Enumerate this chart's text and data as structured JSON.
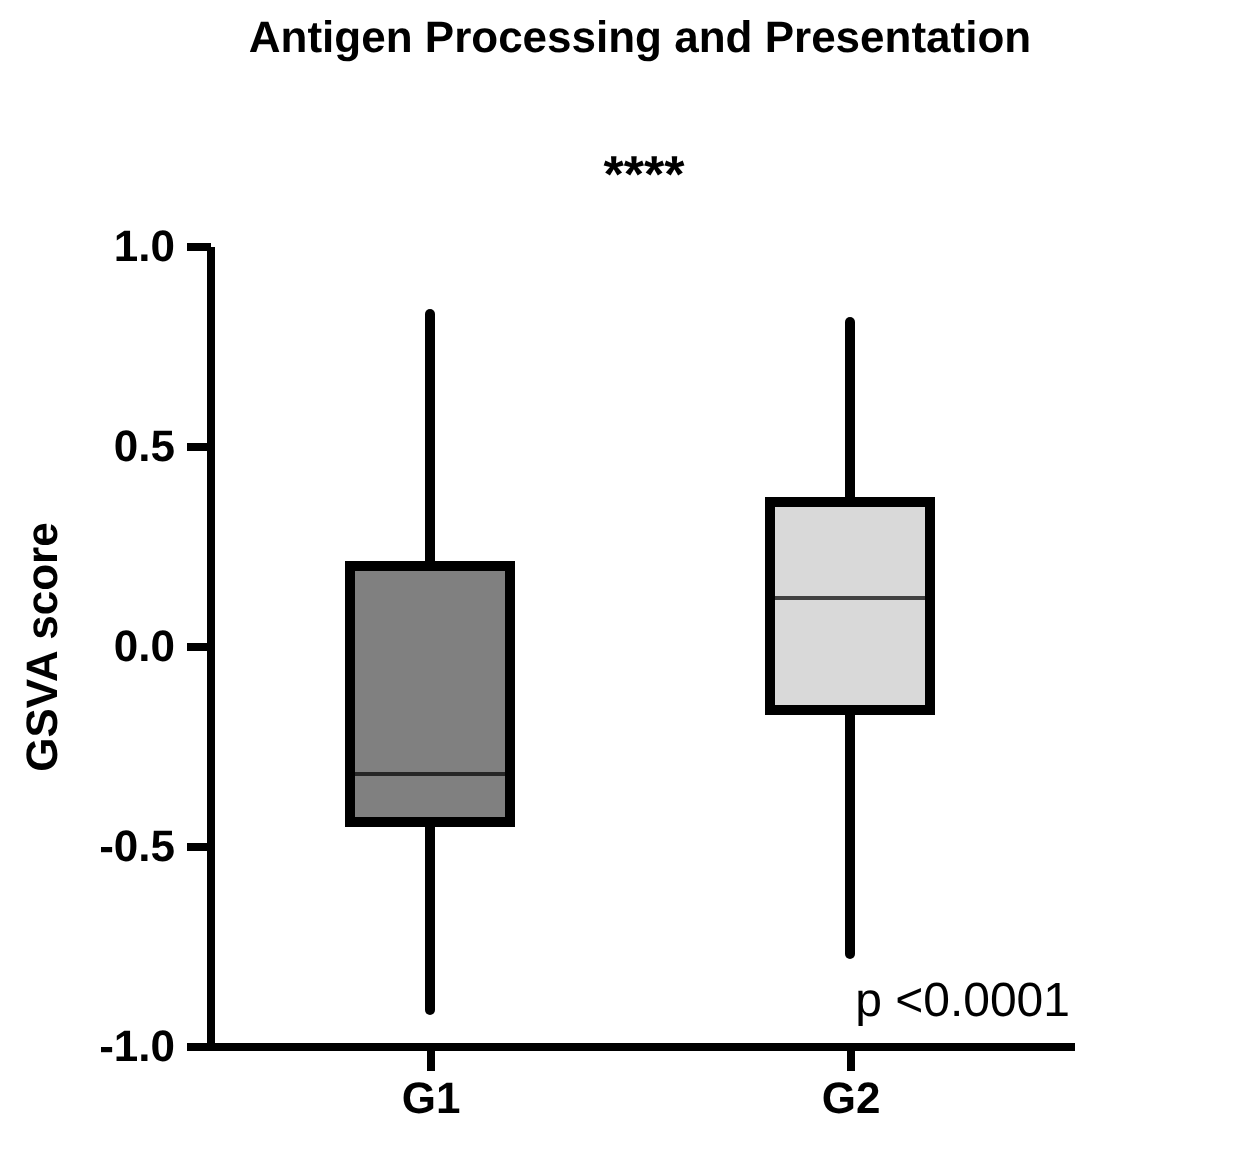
{
  "chart_data": {
    "type": "box",
    "title": "Antigen Processing and Presentation",
    "ylabel": "GSVA score",
    "categories": [
      "G1",
      "G2"
    ],
    "boxes": [
      {
        "low": -0.91,
        "q1": -0.44,
        "median": -0.32,
        "q3": 0.2,
        "high": 0.83
      },
      {
        "low": -0.77,
        "q1": -0.16,
        "median": 0.12,
        "q3": 0.36,
        "high": 0.81
      }
    ],
    "colors": [
      "#808080",
      "#d9d9d9"
    ],
    "ylim": [
      -1,
      1
    ],
    "yticks": [
      {
        "value": -1,
        "label": "-1.0"
      },
      {
        "value": -0.5,
        "label": "-0.5"
      },
      {
        "value": 0,
        "label": "0.0"
      },
      {
        "value": 0.5,
        "label": "0.5"
      },
      {
        "value": 1,
        "label": "1.0"
      }
    ],
    "annotations": [
      "****",
      "p <0.0001"
    ],
    "grid": false
  }
}
